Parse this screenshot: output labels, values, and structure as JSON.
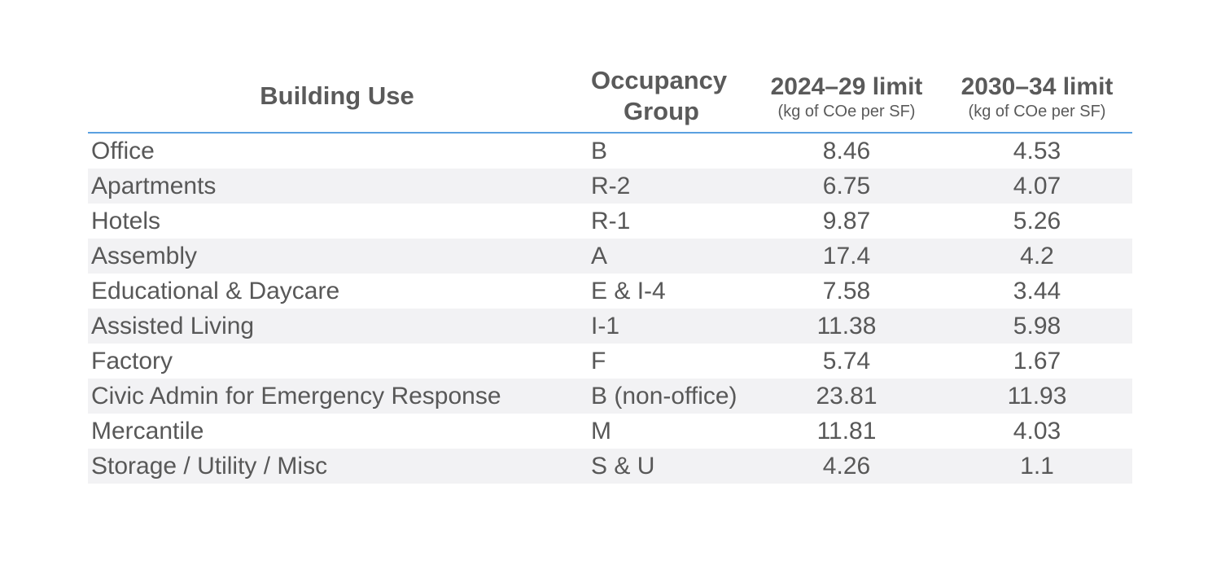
{
  "table": {
    "headers": {
      "building_use": "Building Use",
      "occupancy_line1": "Occupancy",
      "occupancy_line2": "Group",
      "limit_2024": "2024–29 limit",
      "limit_2024_unit": "(kg of COe per SF)",
      "limit_2030": "2030–34 limit",
      "limit_2030_unit": "(kg of COe per SF)"
    },
    "rows": [
      {
        "use": "Office",
        "group": "B",
        "limit_2024": "8.46",
        "limit_2030": "4.53"
      },
      {
        "use": "Apartments",
        "group": "R-2",
        "limit_2024": "6.75",
        "limit_2030": "4.07"
      },
      {
        "use": "Hotels",
        "group": "R-1",
        "limit_2024": "9.87",
        "limit_2030": "5.26"
      },
      {
        "use": "Assembly",
        "group": "A",
        "limit_2024": "17.4",
        "limit_2030": "4.2"
      },
      {
        "use": "Educational & Daycare",
        "group": "E & I-4",
        "limit_2024": "7.58",
        "limit_2030": "3.44"
      },
      {
        "use": "Assisted Living",
        "group": "I-1",
        "limit_2024": "11.38",
        "limit_2030": "5.98"
      },
      {
        "use": "Factory",
        "group": "F",
        "limit_2024": "5.74",
        "limit_2030": "1.67"
      },
      {
        "use": "Civic Admin for Emergency Response",
        "group": "B (non-office)",
        "limit_2024": "23.81",
        "limit_2030": "11.93"
      },
      {
        "use": "Mercantile",
        "group": "M",
        "limit_2024": "11.81",
        "limit_2030": "4.03"
      },
      {
        "use": "Storage / Utility / Misc",
        "group": "S & U",
        "limit_2024": "4.26",
        "limit_2030": "1.1"
      }
    ],
    "colors": {
      "header_rule": "#5aa0e0",
      "stripe": "#f2f2f4",
      "text": "#585858"
    }
  }
}
